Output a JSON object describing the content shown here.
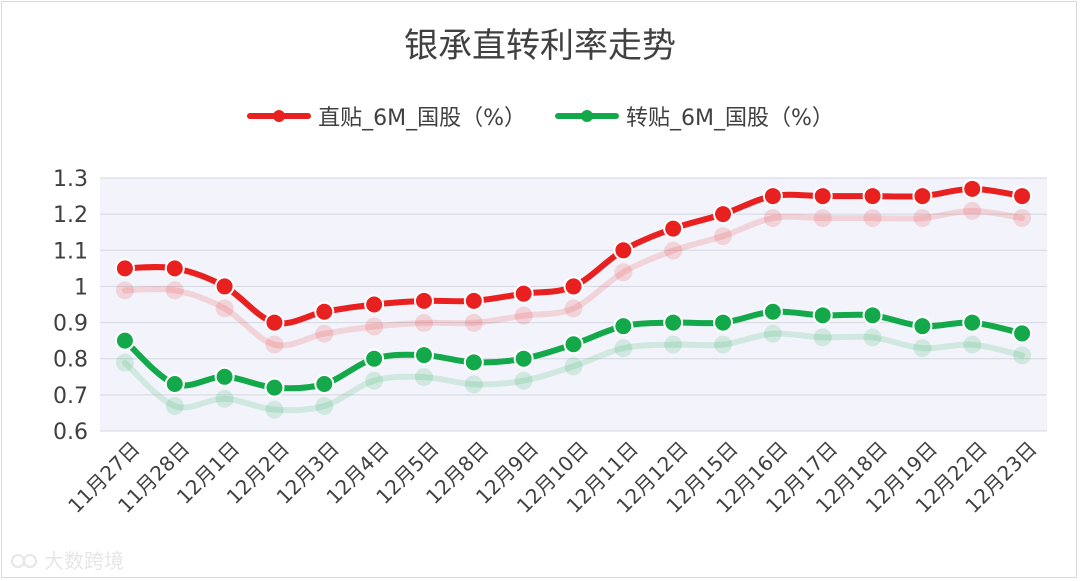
{
  "chart_data": {
    "type": "line",
    "title": "银承直转利率走势",
    "categories": [
      "11月27日",
      "11月28日",
      "12月1日",
      "12月2日",
      "12月3日",
      "12月4日",
      "12月5日",
      "12月8日",
      "12月9日",
      "12月10日",
      "12月11日",
      "12月12日",
      "12月15日",
      "12月16日",
      "12月17日",
      "12月18日",
      "12月19日",
      "12月22日",
      "12月23日"
    ],
    "series": [
      {
        "name": "直贴_6M_国股（%）",
        "color": "#e8201f",
        "values": [
          1.05,
          1.05,
          1.0,
          0.9,
          0.93,
          0.95,
          0.96,
          0.96,
          0.98,
          1.0,
          1.1,
          1.16,
          1.2,
          1.25,
          1.25,
          1.25,
          1.25,
          1.27,
          1.25
        ]
      },
      {
        "name": "转贴_6M_国股（%）",
        "color": "#13a94a",
        "values": [
          0.85,
          0.73,
          0.75,
          0.72,
          0.73,
          0.8,
          0.81,
          0.79,
          0.8,
          0.84,
          0.89,
          0.9,
          0.9,
          0.93,
          0.92,
          0.92,
          0.89,
          0.9,
          0.87
        ]
      }
    ],
    "ylim": [
      0.6,
      1.3
    ],
    "yticks": [
      "1.3",
      "1.2",
      "1.1",
      "1",
      "0.9",
      "0.8",
      "0.7",
      "0.6"
    ],
    "grid": true,
    "legend": "top"
  },
  "watermark": "大数跨境"
}
